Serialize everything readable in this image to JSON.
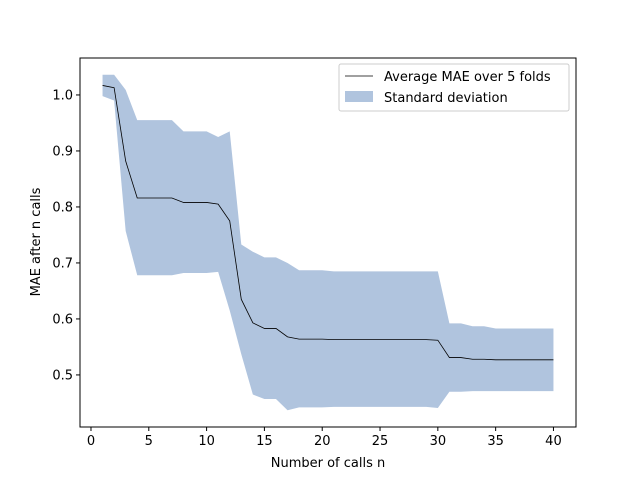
{
  "chart_data": {
    "type": "line",
    "xlabel": "Number of calls n",
    "ylabel": "MAE after n calls",
    "xlim": [
      -0.95,
      41.95
    ],
    "ylim": [
      0.407,
      1.066
    ],
    "xticks": [
      0,
      5,
      10,
      15,
      20,
      25,
      30,
      35,
      40
    ],
    "yticks": [
      0.5,
      0.6,
      0.7,
      0.8,
      0.9,
      1.0
    ],
    "xtick_labels": [
      "0",
      "5",
      "10",
      "15",
      "20",
      "25",
      "30",
      "35",
      "40"
    ],
    "ytick_labels": [
      "0.5",
      "0.6",
      "0.7",
      "0.8",
      "0.9",
      "1.0"
    ],
    "legend_position": "upper-right",
    "grid": false,
    "x": [
      1,
      2,
      3,
      4,
      5,
      6,
      7,
      8,
      9,
      10,
      11,
      12,
      13,
      14,
      15,
      16,
      17,
      18,
      19,
      20,
      21,
      22,
      23,
      24,
      25,
      26,
      27,
      28,
      29,
      30,
      31,
      32,
      33,
      34,
      35,
      36,
      37,
      38,
      39,
      40
    ],
    "series": [
      {
        "name": "Average MAE over 5 folds",
        "color": "#000000",
        "values": [
          1.017,
          1.013,
          0.882,
          0.816,
          0.816,
          0.816,
          0.816,
          0.808,
          0.808,
          0.808,
          0.805,
          0.775,
          0.635,
          0.593,
          0.583,
          0.583,
          0.568,
          0.564,
          0.564,
          0.564,
          0.563,
          0.563,
          0.563,
          0.563,
          0.563,
          0.563,
          0.563,
          0.563,
          0.563,
          0.562,
          0.531,
          0.531,
          0.528,
          0.528,
          0.527,
          0.527,
          0.527,
          0.527,
          0.527,
          0.527
        ]
      }
    ],
    "band": {
      "name": "Standard deviation",
      "color": "#b0c4de",
      "upper": [
        1.036,
        1.036,
        1.009,
        0.955,
        0.955,
        0.955,
        0.955,
        0.935,
        0.935,
        0.935,
        0.925,
        0.935,
        0.733,
        0.72,
        0.71,
        0.71,
        0.7,
        0.687,
        0.687,
        0.687,
        0.685,
        0.685,
        0.685,
        0.685,
        0.685,
        0.685,
        0.685,
        0.685,
        0.685,
        0.685,
        0.592,
        0.592,
        0.587,
        0.587,
        0.583,
        0.583,
        0.583,
        0.583,
        0.583,
        0.583
      ],
      "lower": [
        0.998,
        0.99,
        0.757,
        0.678,
        0.678,
        0.678,
        0.678,
        0.682,
        0.682,
        0.682,
        0.684,
        0.615,
        0.537,
        0.465,
        0.457,
        0.457,
        0.437,
        0.442,
        0.442,
        0.442,
        0.443,
        0.443,
        0.443,
        0.443,
        0.443,
        0.443,
        0.443,
        0.443,
        0.443,
        0.441,
        0.47,
        0.47,
        0.471,
        0.471,
        0.471,
        0.471,
        0.471,
        0.471,
        0.471,
        0.471
      ]
    }
  }
}
